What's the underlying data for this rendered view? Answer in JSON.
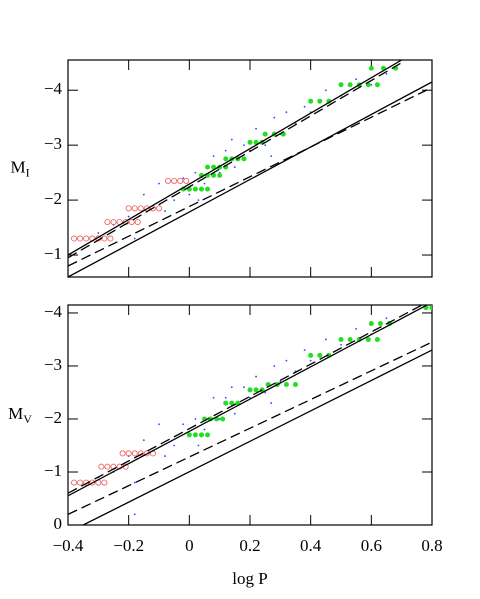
{
  "chart_data": [
    {
      "type": "scatter",
      "ylabel": "M",
      "ylabel_sub": "I",
      "xlim": [
        -0.4,
        0.8
      ],
      "ylim": [
        -0.6,
        -4.55
      ],
      "xticks": [
        {
          "value": -0.4,
          "label": "−0.4"
        },
        {
          "value": -0.2,
          "label": "−0.2"
        },
        0,
        0.2,
        0.4,
        0.6,
        0.8
      ],
      "yticks": [
        {
          "value": -1,
          "label": "−1"
        },
        {
          "value": -2,
          "label": "−2"
        },
        {
          "value": -3,
          "label": "−3"
        },
        {
          "value": -4,
          "label": "−4"
        }
      ],
      "series": [
        {
          "color": "#3344ff",
          "marker": "dot",
          "x": [
            -0.3,
            -0.25,
            -0.2,
            -0.15,
            -0.12,
            -0.1,
            -0.05,
            -0.02,
            0,
            0.02,
            0.05,
            0.08,
            0.1,
            0.12,
            0.15,
            0.18,
            0.2,
            0.22,
            0.25,
            0.28,
            0.3,
            0.32,
            0.35,
            0.38,
            0.4,
            0.45,
            0.5,
            0.55,
            0.6,
            0.65,
            -0.18,
            0.03,
            0.14,
            0.27,
            -0.08
          ],
          "y": [
            -1.4,
            -1.55,
            -1.7,
            -2.1,
            -1.9,
            -2.3,
            -2.0,
            -2.4,
            -2.1,
            -2.5,
            -2.3,
            -2.8,
            -2.5,
            -2.9,
            -2.6,
            -3.0,
            -2.9,
            -3.3,
            -3.0,
            -3.5,
            -3.2,
            -3.6,
            -3.4,
            -3.7,
            -3.6,
            -4.0,
            -3.9,
            -4.2,
            -4.1,
            -4.3,
            -1.3,
            -2.0,
            -3.1,
            -2.8,
            -1.8
          ]
        },
        {
          "color": "#ee5555",
          "marker": "open-circle",
          "x": [
            -0.38,
            -0.36,
            -0.34,
            -0.32,
            -0.3,
            -0.28,
            -0.26,
            -0.27,
            -0.25,
            -0.23,
            -0.21,
            -0.19,
            -0.17,
            -0.2,
            -0.18,
            -0.16,
            -0.14,
            -0.12,
            -0.1,
            -0.07,
            -0.05,
            -0.03,
            -0.01
          ],
          "y": [
            -1.3,
            -1.3,
            -1.3,
            -1.3,
            -1.3,
            -1.3,
            -1.3,
            -1.6,
            -1.6,
            -1.6,
            -1.6,
            -1.6,
            -1.6,
            -1.85,
            -1.85,
            -1.85,
            -1.85,
            -1.85,
            -1.85,
            -2.35,
            -2.35,
            -2.35,
            -2.35
          ]
        },
        {
          "color": "#22dd22",
          "marker": "filled-circle",
          "x": [
            -0.02,
            0,
            0.02,
            0.04,
            0.06,
            0.04,
            0.06,
            0.08,
            0.1,
            0.06,
            0.08,
            0.1,
            0.12,
            0.12,
            0.14,
            0.16,
            0.18,
            0.2,
            0.22,
            0.24,
            0.25,
            0.28,
            0.31,
            0.4,
            0.43,
            0.46,
            0.5,
            0.53,
            0.56,
            0.59,
            0.62,
            0.6,
            0.64,
            0.68
          ],
          "y": [
            -2.2,
            -2.2,
            -2.2,
            -2.2,
            -2.2,
            -2.45,
            -2.45,
            -2.45,
            -2.45,
            -2.6,
            -2.6,
            -2.6,
            -2.6,
            -2.75,
            -2.75,
            -2.75,
            -2.75,
            -3.05,
            -3.05,
            -3.05,
            -3.2,
            -3.2,
            -3.2,
            -3.8,
            -3.8,
            -3.8,
            -4.1,
            -4.1,
            -4.1,
            -4.1,
            -4.1,
            -4.4,
            -4.4,
            -4.4
          ]
        }
      ],
      "lines": [
        {
          "style": "solid",
          "x": [
            -0.4,
            0.7
          ],
          "y": [
            -1.0,
            -4.55
          ]
        },
        {
          "style": "dashed",
          "x": [
            -0.4,
            0.7
          ],
          "y": [
            -0.95,
            -4.5
          ]
        },
        {
          "style": "solid",
          "x": [
            -0.4,
            0.8
          ],
          "y": [
            -0.6,
            -4.15
          ]
        },
        {
          "style": "dashed",
          "x": [
            -0.4,
            0.8
          ],
          "y": [
            -0.8,
            -4.05
          ]
        }
      ]
    },
    {
      "type": "scatter",
      "ylabel": "M",
      "ylabel_sub": "V",
      "xlabel": "log P",
      "xlim": [
        -0.4,
        0.8
      ],
      "ylim": [
        0,
        -4.15
      ],
      "xticks": [
        {
          "value": -0.4,
          "label": "−0.4"
        },
        {
          "value": -0.2,
          "label": "−0.2"
        },
        0,
        0.2,
        0.4,
        0.6,
        0.8
      ],
      "yticks": [
        0,
        {
          "value": -1,
          "label": "−1"
        },
        {
          "value": -2,
          "label": "−2"
        },
        {
          "value": -3,
          "label": "−3"
        },
        {
          "value": -4,
          "label": "−4"
        }
      ],
      "series": [
        {
          "color": "#3344ff",
          "marker": "dot",
          "x": [
            -0.3,
            -0.25,
            -0.2,
            -0.15,
            -0.12,
            -0.1,
            -0.05,
            -0.02,
            0,
            0.02,
            0.05,
            0.08,
            0.1,
            0.12,
            0.15,
            0.18,
            0.2,
            0.22,
            0.25,
            0.28,
            0.3,
            0.32,
            0.35,
            0.38,
            0.4,
            0.45,
            0.5,
            0.55,
            0.6,
            0.65,
            -0.18,
            0.03,
            0.14,
            0.27,
            -0.08,
            -0.18
          ],
          "y": [
            -0.9,
            -1.0,
            -1.3,
            -1.6,
            -1.4,
            -1.9,
            -1.5,
            -1.9,
            -1.7,
            -2.0,
            -1.8,
            -2.4,
            -2.0,
            -2.4,
            -2.1,
            -2.6,
            -2.4,
            -2.8,
            -2.5,
            -3.0,
            -2.7,
            -3.1,
            -2.9,
            -3.3,
            -3.1,
            -3.5,
            -3.4,
            -3.7,
            -3.6,
            -3.9,
            -0.8,
            -1.5,
            -2.6,
            -2.3,
            -1.3,
            -0.2
          ]
        },
        {
          "color": "#ee5555",
          "marker": "open-circle",
          "x": [
            -0.38,
            -0.36,
            -0.34,
            -0.32,
            -0.3,
            -0.28,
            -0.29,
            -0.27,
            -0.25,
            -0.23,
            -0.21,
            -0.22,
            -0.2,
            -0.18,
            -0.16,
            -0.14,
            -0.12
          ],
          "y": [
            -0.8,
            -0.8,
            -0.8,
            -0.8,
            -0.8,
            -0.8,
            -1.1,
            -1.1,
            -1.1,
            -1.1,
            -1.1,
            -1.35,
            -1.35,
            -1.35,
            -1.35,
            -1.35,
            -1.35
          ]
        },
        {
          "color": "#22dd22",
          "marker": "filled-circle",
          "x": [
            0,
            0.02,
            0.04,
            0.06,
            0.05,
            0.07,
            0.09,
            0.11,
            0.12,
            0.14,
            0.16,
            0.2,
            0.22,
            0.24,
            0.26,
            0.29,
            0.32,
            0.35,
            0.4,
            0.43,
            0.46,
            0.5,
            0.53,
            0.56,
            0.59,
            0.62,
            0.6,
            0.63,
            0.66,
            0.78,
            0.8
          ],
          "y": [
            -1.7,
            -1.7,
            -1.7,
            -1.7,
            -2.0,
            -2.0,
            -2.0,
            -2.0,
            -2.3,
            -2.3,
            -2.3,
            -2.55,
            -2.55,
            -2.55,
            -2.65,
            -2.65,
            -2.65,
            -2.65,
            -3.2,
            -3.2,
            -3.2,
            -3.5,
            -3.5,
            -3.5,
            -3.5,
            -3.5,
            -3.8,
            -3.8,
            -3.8,
            -4.1,
            -4.1
          ]
        }
      ],
      "lines": [
        {
          "style": "solid",
          "x": [
            -0.4,
            0.8
          ],
          "y": [
            -0.55,
            -4.2
          ]
        },
        {
          "style": "dashed",
          "x": [
            -0.4,
            0.8
          ],
          "y": [
            -0.6,
            -4.25
          ]
        },
        {
          "style": "solid",
          "x": [
            -0.35,
            0.8
          ],
          "y": [
            0,
            -3.3
          ]
        },
        {
          "style": "dashed",
          "x": [
            -0.4,
            0.8
          ],
          "y": [
            -0.2,
            -3.45
          ]
        }
      ]
    }
  ]
}
